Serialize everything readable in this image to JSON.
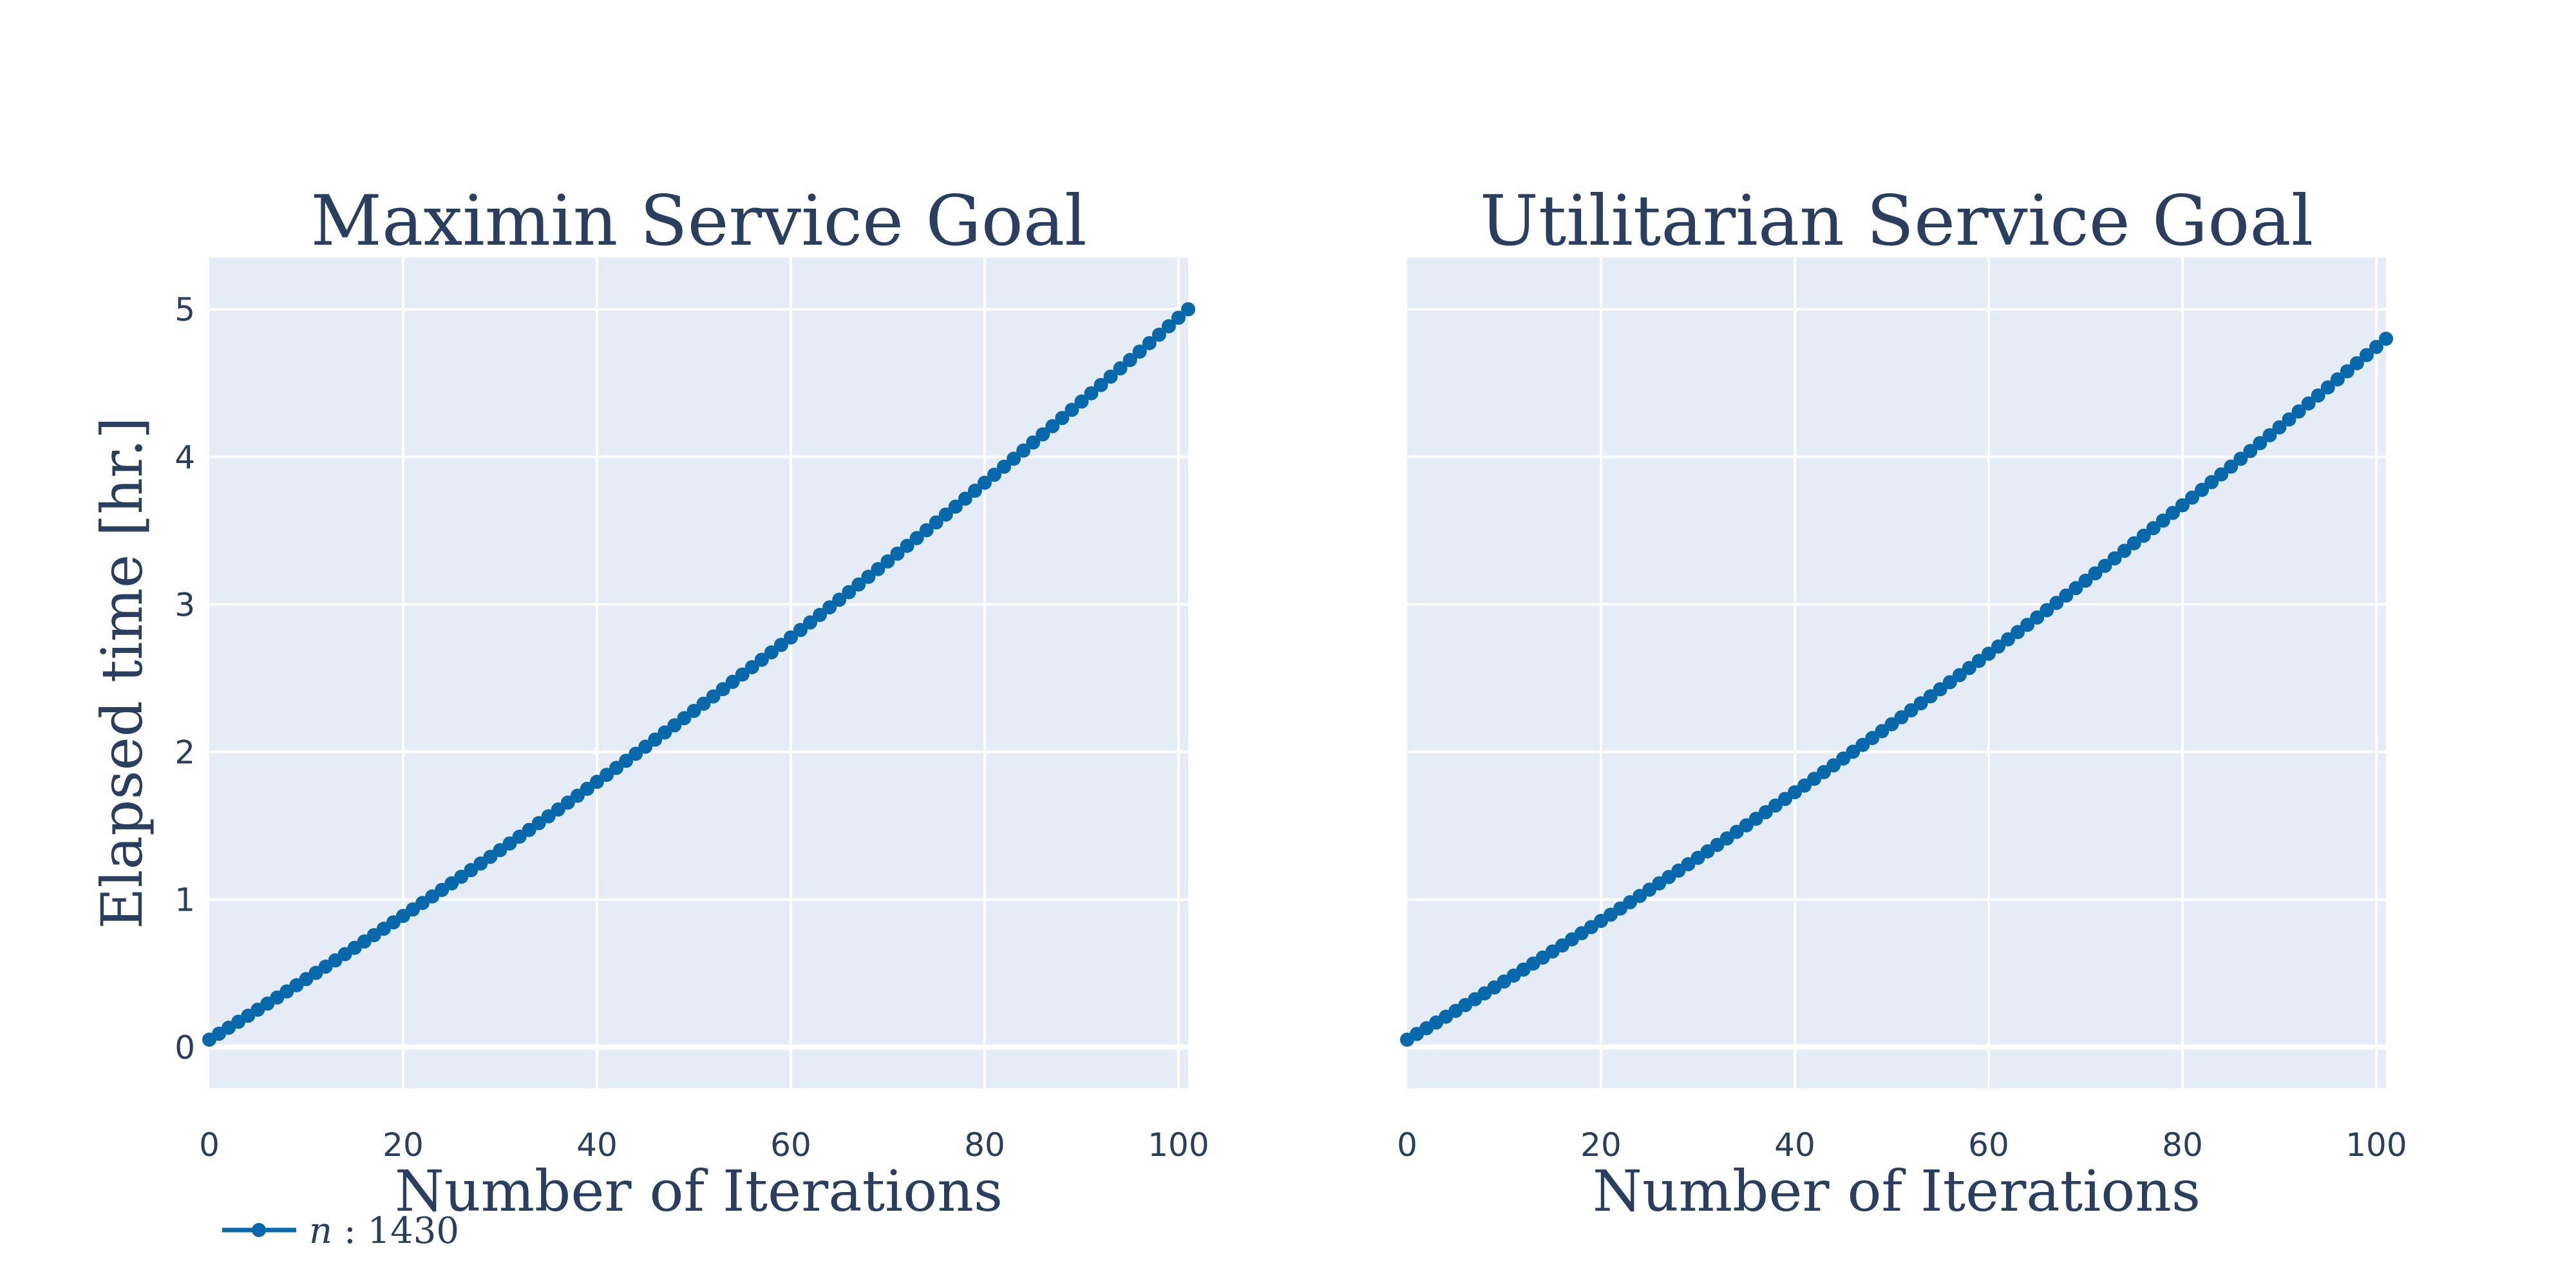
{
  "chart_data": [
    {
      "type": "line",
      "title": "Maximin Service Goal",
      "xlabel": "Number of Iterations",
      "ylabel": "Elapsed time [hr.]",
      "xlim": [
        0,
        101
      ],
      "ylim": [
        -0.28,
        5.35
      ],
      "xticks": [
        "0",
        "20",
        "40",
        "60",
        "80",
        "100"
      ],
      "yticks": [
        "0",
        "1",
        "2",
        "3",
        "4",
        "5"
      ],
      "grid": true,
      "series": [
        {
          "name": "n : 1430",
          "color": "#0868ac",
          "y_start": 0.05,
          "y_end": 5.0,
          "curvature": 0.18,
          "n_points": 102
        }
      ]
    },
    {
      "type": "line",
      "title": "Utilitarian Service Goal",
      "xlabel": "Number of Iterations",
      "ylabel": "",
      "xlim": [
        0,
        101
      ],
      "ylim": [
        -0.28,
        5.35
      ],
      "xticks": [
        "0",
        "20",
        "40",
        "60",
        "80",
        "100"
      ],
      "yticks": [],
      "grid": true,
      "series": [
        {
          "name": "n : 1430",
          "color": "#0868ac",
          "y_start": 0.05,
          "y_end": 4.8,
          "curvature": 0.18,
          "n_points": 102
        }
      ]
    }
  ],
  "legend": {
    "placement": "bottom-left",
    "var": "n",
    "rest": " : 1430",
    "color": "#0868ac"
  },
  "colors": {
    "plot_bg": "#e5ecf6",
    "grid": "#ffffff",
    "text": "#2a3f5f"
  }
}
